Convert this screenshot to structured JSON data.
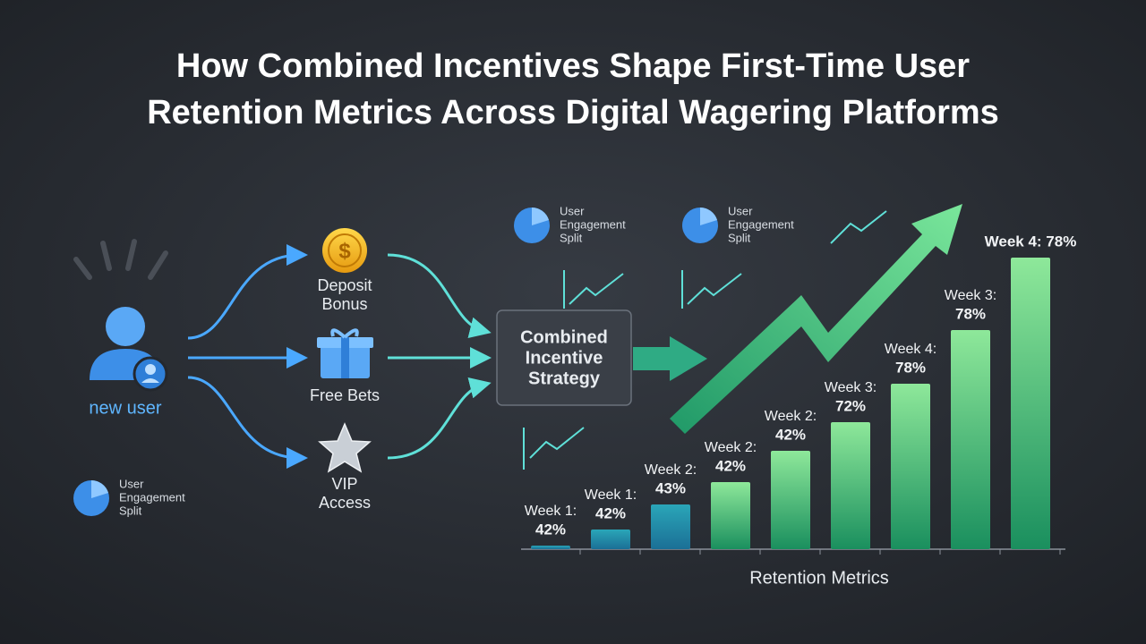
{
  "title": [
    "How Combined Incentives Shape First-Time User",
    "Retention Metrics Across Digital Wagering Platforms"
  ],
  "user_label": "new user",
  "incentives": [
    {
      "lines": [
        "Deposit",
        "Bonus"
      ]
    },
    {
      "lines": [
        "Free Bets"
      ]
    },
    {
      "lines": [
        "VIP",
        "Access"
      ]
    }
  ],
  "strategy": [
    "Combined",
    "Incentive",
    "Strategy"
  ],
  "engagement_labels": [
    [
      "User",
      "Engagement",
      "Split"
    ],
    [
      "User",
      "Engagement",
      "Split"
    ],
    [
      "User",
      "Engagement",
      "Split"
    ]
  ],
  "bars": [
    {
      "week": "Week 1:",
      "value": "42%"
    },
    {
      "week": "Week 1:",
      "value": "42%"
    },
    {
      "week": "Week 2:",
      "value": "43%"
    },
    {
      "week": "Week 2:",
      "value": "42%"
    },
    {
      "week": "Week 2:",
      "value": "42%"
    },
    {
      "week": "Week 3:",
      "value": "72%"
    },
    {
      "week": "Week 4:",
      "value": "78%"
    },
    {
      "week": "Week 3:",
      "value": "78%"
    },
    {
      "week": "Week 4: 78%"
    }
  ],
  "axis_label": "Retention Metrics"
}
